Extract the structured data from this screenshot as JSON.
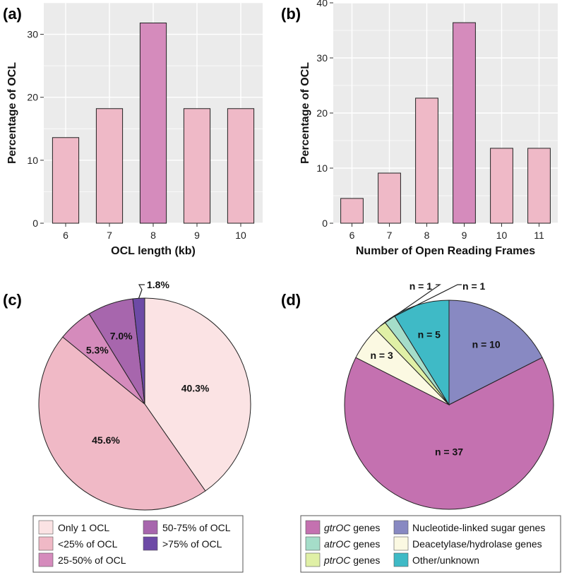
{
  "chart_data": [
    {
      "panel": "(a)",
      "type": "bar",
      "categories": [
        "6",
        "7",
        "8",
        "9",
        "10"
      ],
      "values": [
        13.6,
        18.2,
        31.8,
        18.2,
        18.2
      ],
      "highlight_index": 2,
      "xlabel": "OCL length (kb)",
      "ylabel": "Percentage of OCL",
      "yticks": [
        "0",
        "10",
        "20",
        "30"
      ],
      "ylim": [
        0,
        35
      ],
      "colors": {
        "bar": "#efb9c7",
        "highlight": "#d58bbc",
        "panel_bg": "#ebebeb",
        "grid": "#ffffff"
      }
    },
    {
      "panel": "(b)",
      "type": "bar",
      "categories": [
        "6",
        "7",
        "8",
        "9",
        "10",
        "11"
      ],
      "values": [
        4.5,
        9.1,
        22.7,
        36.4,
        13.6,
        13.6
      ],
      "highlight_index": 3,
      "xlabel": "Number of Open Reading Frames",
      "ylabel": "Percentage of OCL",
      "yticks": [
        "0",
        "10",
        "20",
        "30",
        "40"
      ],
      "ylim": [
        0,
        40
      ],
      "colors": {
        "bar": "#efb9c7",
        "highlight": "#d58bbc",
        "panel_bg": "#ebebeb",
        "grid": "#ffffff"
      }
    },
    {
      "panel": "(c)",
      "type": "pie",
      "slices": [
        {
          "name": "Only 1 OCL",
          "value": 40.3,
          "label": "40.3%",
          "color": "#fbe3e4"
        },
        {
          "name": "<25% of OCL",
          "value": 45.6,
          "label": "45.6%",
          "color": "#f0b9c6"
        },
        {
          "name": "25-50% of OCL",
          "value": 5.3,
          "label": "5.3%",
          "color": "#d58bbc"
        },
        {
          "name": "50-75% of OCL",
          "value": 7.0,
          "label": "7.0%",
          "color": "#a766ad"
        },
        {
          "name": ">75% of OCL",
          "value": 1.8,
          "label": "1.8%",
          "color": "#6d4aa6"
        }
      ],
      "legend": [
        {
          "name": "Only 1 OCL",
          "color": "#fbe3e4"
        },
        {
          "name": "<25% of OCL",
          "color": "#f0b9c6"
        },
        {
          "name": "25-50% of OCL",
          "color": "#d58bbc"
        },
        {
          "name": "50-75% of OCL",
          "color": "#a766ad"
        },
        {
          "name": ">75% of OCL",
          "color": "#6d4aa6"
        }
      ]
    },
    {
      "panel": "(d)",
      "type": "pie",
      "slices": [
        {
          "name": "Nucleotide-linked sugar genes",
          "value": 10,
          "label": "n = 10",
          "color": "#8889c2"
        },
        {
          "name": "gtrOC genes",
          "value": 37,
          "label": "n = 37",
          "color": "#c471b0"
        },
        {
          "name": "Deacetylase/hydrolase genes",
          "value": 3,
          "label": "n = 3",
          "color": "#fbf9e2"
        },
        {
          "name": "ptrOC genes",
          "value": 1,
          "label": "n = 1",
          "color": "#e0f0a6"
        },
        {
          "name": "atrOC genes",
          "value": 1,
          "label": "n = 1",
          "color": "#a5ddc9"
        },
        {
          "name": "Other/unknown",
          "value": 5,
          "label": "n = 5",
          "color": "#3fbac6"
        }
      ],
      "legend": [
        {
          "italic": "gtrOC",
          "rest": " genes",
          "color": "#c471b0"
        },
        {
          "italic": "atrOC",
          "rest": " genes",
          "color": "#a5ddc9"
        },
        {
          "italic": "ptrOC",
          "rest": " genes",
          "color": "#e0f0a6"
        },
        {
          "italic": "",
          "rest": "Nucleotide-linked sugar genes",
          "color": "#8889c2"
        },
        {
          "italic": "",
          "rest": "Deacetylase/hydrolase genes",
          "color": "#fbf9e2"
        },
        {
          "italic": "",
          "rest": "Other/unknown",
          "color": "#3fbac6"
        }
      ]
    }
  ]
}
